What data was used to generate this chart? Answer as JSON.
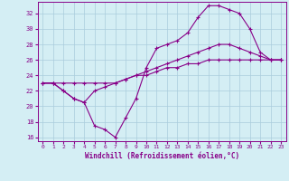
{
  "xlabel": "Windchill (Refroidissement éolien,°C)",
  "background_color": "#d4eef4",
  "grid_color": "#aaccdd",
  "line_color": "#880088",
  "xmin": -0.5,
  "xmax": 23.5,
  "ymin": 15.5,
  "ymax": 33.5,
  "yticks": [
    16,
    18,
    20,
    22,
    24,
    26,
    28,
    30,
    32
  ],
  "xticks": [
    0,
    1,
    2,
    3,
    4,
    5,
    6,
    7,
    8,
    9,
    10,
    11,
    12,
    13,
    14,
    15,
    16,
    17,
    18,
    19,
    20,
    21,
    22,
    23
  ],
  "series1_y": [
    23,
    23,
    22,
    21,
    20.5,
    17.5,
    17,
    16,
    18.5,
    21,
    25,
    27.5,
    28,
    28.5,
    29.5,
    31.5,
    33,
    33,
    32.5,
    32,
    30,
    27,
    26,
    26
  ],
  "series2_y": [
    23,
    23,
    22,
    21,
    20.5,
    22,
    22.5,
    23,
    23.5,
    24,
    24.5,
    25,
    25.5,
    26,
    26.5,
    27,
    27.5,
    28,
    28,
    27.5,
    27,
    26.5,
    26,
    26
  ],
  "series3_y": [
    23,
    23,
    23,
    23,
    23,
    23,
    23,
    23,
    23.5,
    24,
    24,
    24.5,
    25,
    25,
    25.5,
    25.5,
    26,
    26,
    26,
    26,
    26,
    26,
    26,
    26
  ]
}
